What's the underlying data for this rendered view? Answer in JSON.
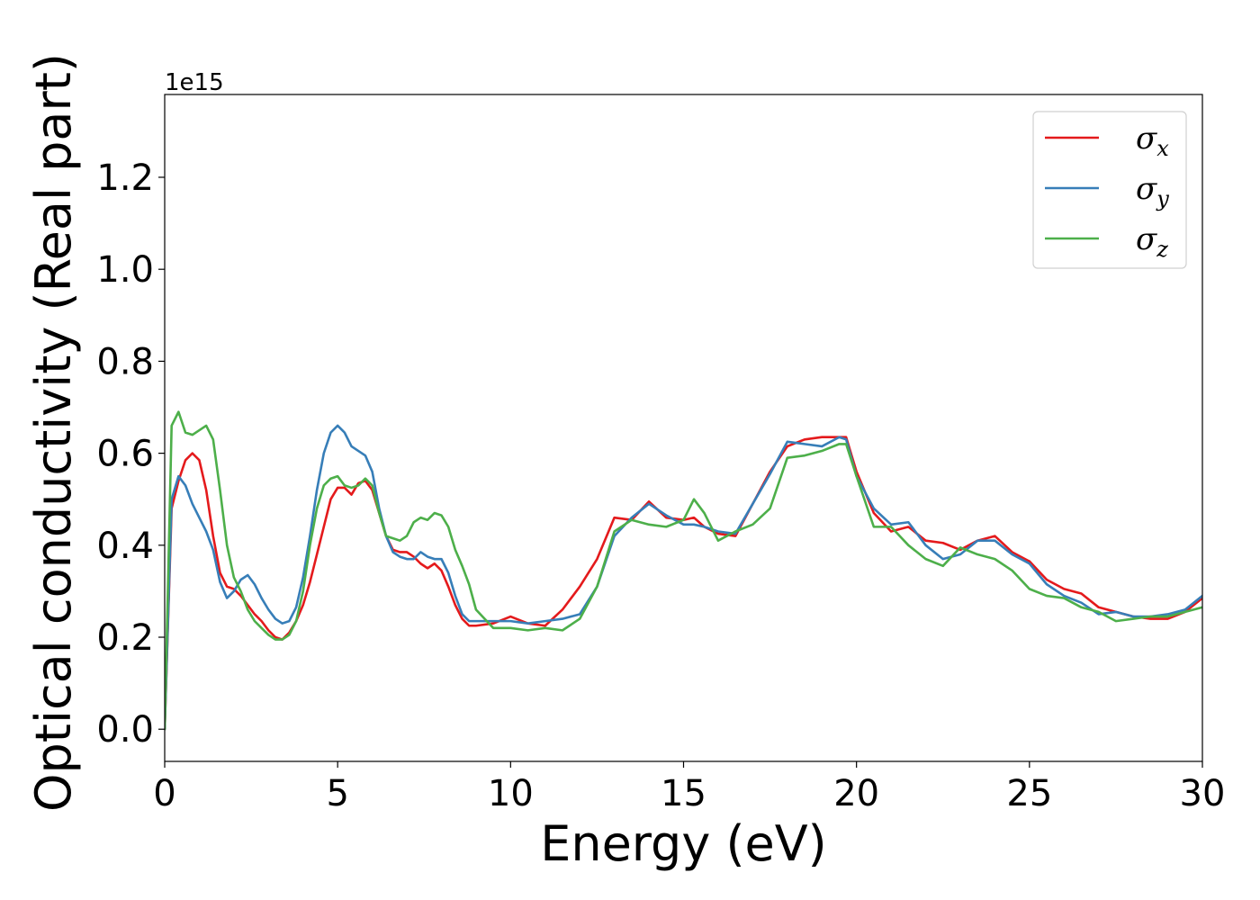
{
  "chart_data": {
    "type": "line",
    "xlabel": "Energy (eV)",
    "ylabel": "Optical conductivity (Real part)",
    "y_offset_label": "1e15",
    "xlim": [
      0,
      30
    ],
    "ylim": [
      -0.07,
      1.38
    ],
    "x_ticks": [
      0,
      5,
      10,
      15,
      20,
      25,
      30
    ],
    "x_tick_labels": [
      "0",
      "5",
      "10",
      "15",
      "20",
      "25",
      "30"
    ],
    "y_ticks": [
      0.0,
      0.2,
      0.4,
      0.6,
      0.8,
      1.0,
      1.2
    ],
    "y_tick_labels": [
      "0.0",
      "0.2",
      "0.4",
      "0.6",
      "0.8",
      "1.0",
      "1.2"
    ],
    "grid": false,
    "legend_position": "top-right",
    "x": [
      0.0,
      0.2,
      0.4,
      0.6,
      0.8,
      1.0,
      1.2,
      1.4,
      1.6,
      1.8,
      2.0,
      2.2,
      2.4,
      2.6,
      2.8,
      3.0,
      3.2,
      3.4,
      3.6,
      3.8,
      4.0,
      4.2,
      4.4,
      4.6,
      4.8,
      5.0,
      5.2,
      5.4,
      5.6,
      5.8,
      6.0,
      6.2,
      6.4,
      6.6,
      6.8,
      7.0,
      7.2,
      7.4,
      7.6,
      7.8,
      8.0,
      8.2,
      8.4,
      8.6,
      8.8,
      9.0,
      9.5,
      10.0,
      10.5,
      11.0,
      11.5,
      12.0,
      12.5,
      13.0,
      13.5,
      14.0,
      14.5,
      15.0,
      15.3,
      15.6,
      16.0,
      16.5,
      17.0,
      17.5,
      18.0,
      18.5,
      19.0,
      19.5,
      19.7,
      20.0,
      20.5,
      21.0,
      21.5,
      22.0,
      22.5,
      23.0,
      23.5,
      24.0,
      24.5,
      25.0,
      25.5,
      26.0,
      26.5,
      27.0,
      27.5,
      28.0,
      28.5,
      29.0,
      29.5,
      30.0
    ],
    "series": [
      {
        "name": "σx",
        "label_base": "σ",
        "label_sub": "x",
        "color": "#e41a1c",
        "values": [
          0.0,
          0.48,
          0.54,
          0.585,
          0.6,
          0.585,
          0.52,
          0.42,
          0.34,
          0.31,
          0.305,
          0.29,
          0.27,
          0.25,
          0.235,
          0.215,
          0.2,
          0.195,
          0.21,
          0.235,
          0.27,
          0.32,
          0.38,
          0.44,
          0.5,
          0.525,
          0.525,
          0.51,
          0.535,
          0.54,
          0.52,
          0.47,
          0.42,
          0.39,
          0.385,
          0.385,
          0.375,
          0.36,
          0.35,
          0.36,
          0.345,
          0.31,
          0.27,
          0.24,
          0.225,
          0.225,
          0.23,
          0.245,
          0.23,
          0.225,
          0.26,
          0.31,
          0.37,
          0.46,
          0.455,
          0.495,
          0.46,
          0.455,
          0.46,
          0.44,
          0.425,
          0.42,
          0.49,
          0.56,
          0.615,
          0.63,
          0.635,
          0.635,
          0.635,
          0.56,
          0.47,
          0.43,
          0.44,
          0.41,
          0.405,
          0.39,
          0.41,
          0.42,
          0.385,
          0.365,
          0.325,
          0.305,
          0.295,
          0.265,
          0.255,
          0.245,
          0.24,
          0.24,
          0.255,
          0.285
        ]
      },
      {
        "name": "σy",
        "label_base": "σ",
        "label_sub": "y",
        "color": "#377eb8",
        "values": [
          0.0,
          0.5,
          0.55,
          0.53,
          0.49,
          0.46,
          0.43,
          0.39,
          0.32,
          0.285,
          0.3,
          0.325,
          0.335,
          0.315,
          0.285,
          0.26,
          0.24,
          0.23,
          0.235,
          0.265,
          0.33,
          0.42,
          0.52,
          0.6,
          0.645,
          0.66,
          0.645,
          0.615,
          0.605,
          0.595,
          0.56,
          0.48,
          0.42,
          0.385,
          0.375,
          0.37,
          0.37,
          0.385,
          0.375,
          0.37,
          0.37,
          0.34,
          0.29,
          0.25,
          0.235,
          0.235,
          0.235,
          0.235,
          0.23,
          0.235,
          0.24,
          0.25,
          0.31,
          0.42,
          0.46,
          0.49,
          0.465,
          0.445,
          0.445,
          0.44,
          0.43,
          0.425,
          0.49,
          0.555,
          0.625,
          0.62,
          0.615,
          0.635,
          0.63,
          0.55,
          0.48,
          0.445,
          0.45,
          0.4,
          0.37,
          0.38,
          0.41,
          0.41,
          0.38,
          0.36,
          0.315,
          0.29,
          0.275,
          0.25,
          0.255,
          0.245,
          0.245,
          0.25,
          0.26,
          0.29
        ]
      },
      {
        "name": "σz",
        "label_base": "σ",
        "label_sub": "z",
        "color": "#4daf4a",
        "values": [
          0.0,
          0.66,
          0.69,
          0.645,
          0.64,
          0.65,
          0.66,
          0.63,
          0.52,
          0.4,
          0.33,
          0.3,
          0.26,
          0.235,
          0.22,
          0.205,
          0.195,
          0.195,
          0.205,
          0.235,
          0.3,
          0.4,
          0.48,
          0.53,
          0.545,
          0.55,
          0.53,
          0.525,
          0.53,
          0.545,
          0.53,
          0.47,
          0.42,
          0.415,
          0.41,
          0.42,
          0.45,
          0.46,
          0.455,
          0.47,
          0.465,
          0.44,
          0.39,
          0.355,
          0.315,
          0.26,
          0.22,
          0.22,
          0.215,
          0.22,
          0.215,
          0.24,
          0.31,
          0.43,
          0.455,
          0.445,
          0.44,
          0.455,
          0.5,
          0.47,
          0.41,
          0.43,
          0.445,
          0.48,
          0.59,
          0.595,
          0.605,
          0.62,
          0.62,
          0.55,
          0.44,
          0.44,
          0.4,
          0.37,
          0.355,
          0.395,
          0.38,
          0.37,
          0.345,
          0.305,
          0.29,
          0.285,
          0.265,
          0.255,
          0.235,
          0.24,
          0.245,
          0.245,
          0.255,
          0.265
        ]
      }
    ]
  }
}
